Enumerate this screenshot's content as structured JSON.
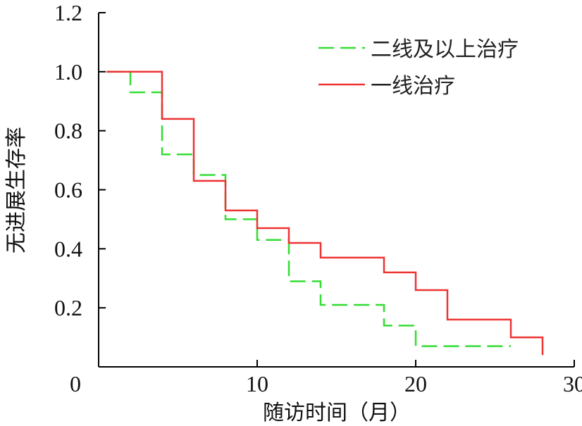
{
  "chart_data": {
    "type": "line",
    "step": true,
    "xlabel": "随访时间（月）",
    "ylabel": "无进展生存率",
    "xlim": [
      0,
      30
    ],
    "ylim": [
      0,
      1.2
    ],
    "x_ticks": [
      0,
      10,
      20,
      30
    ],
    "y_ticks": [
      0.2,
      0.4,
      0.6,
      0.8,
      1.0,
      1.2
    ],
    "x_tick_labels": [
      "0",
      "10",
      "20",
      "30"
    ],
    "y_tick_labels": [
      "0.2",
      "0.4",
      "0.6",
      "0.8",
      "1.0",
      "1.2"
    ],
    "grid": false,
    "legend_position": "top-right",
    "series": [
      {
        "name": "二线及以上治疗",
        "color": "#33dd33",
        "style": "dashed",
        "x": [
          0.5,
          2,
          4,
          6,
          8,
          10,
          12,
          14,
          18,
          20,
          26
        ],
        "y": [
          1.0,
          0.93,
          0.72,
          0.65,
          0.5,
          0.43,
          0.29,
          0.21,
          0.14,
          0.07,
          0.07
        ]
      },
      {
        "name": "一线治疗",
        "color": "#ee3333",
        "style": "solid",
        "x": [
          0.5,
          4,
          6,
          8,
          10,
          12,
          14,
          18,
          20,
          22,
          26,
          28,
          28
        ],
        "y": [
          1.0,
          0.84,
          0.63,
          0.53,
          0.47,
          0.42,
          0.37,
          0.32,
          0.26,
          0.16,
          0.1,
          0.1,
          0.04
        ]
      }
    ]
  }
}
